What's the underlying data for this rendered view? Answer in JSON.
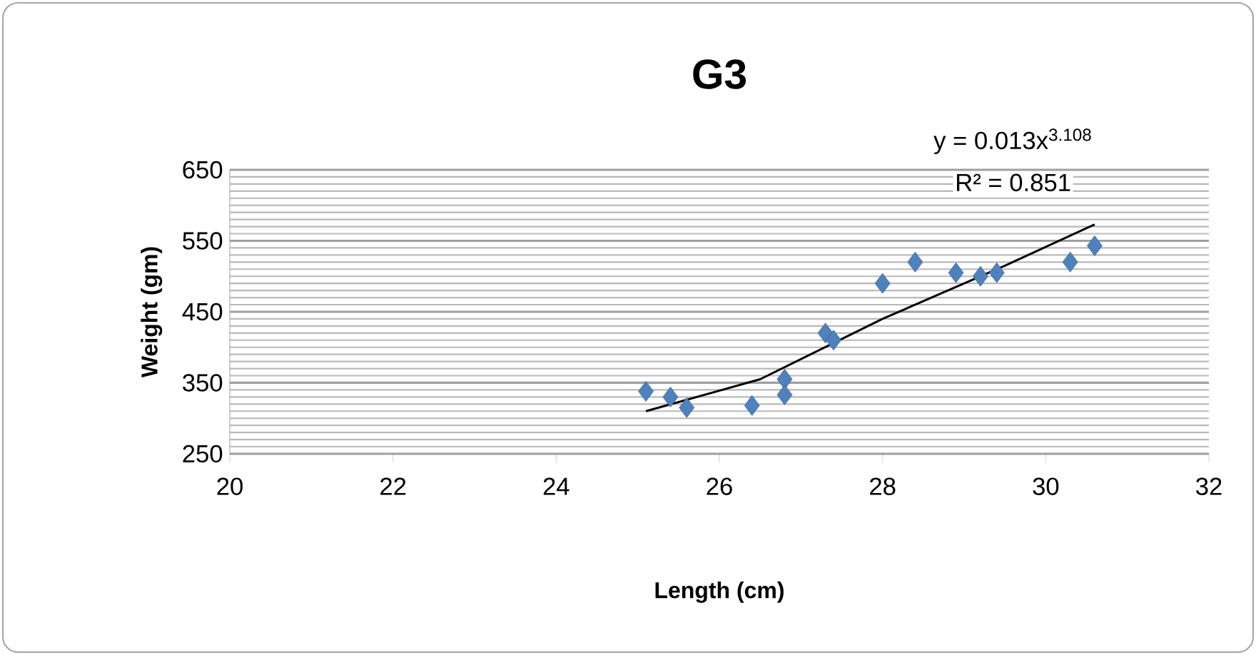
{
  "chart_data": {
    "type": "scatter",
    "title": "G3",
    "xlabel": "Length (cm)",
    "ylabel": "Weight (gm)",
    "annotations": [
      "y = 0.013x$^{3.108}$",
      "R² = 0.851"
    ],
    "xlim": [
      20,
      32
    ],
    "xticks": [
      20,
      22,
      24,
      26,
      28,
      30,
      32
    ],
    "ylim": [
      250,
      650
    ],
    "yticks": [
      250,
      {
        "value": 260,
        "label": null
      },
      {
        "value": 270,
        "label": null
      },
      {
        "value": 280,
        "label": null
      },
      {
        "value": 290,
        "label": null
      },
      {
        "value": 300,
        "label": null
      },
      {
        "value": 310,
        "label": null
      },
      {
        "value": 320,
        "label": null
      },
      {
        "value": 330,
        "label": null
      },
      {
        "value": 340,
        "label": null
      },
      350,
      {
        "value": 360,
        "label": null
      },
      {
        "value": 370,
        "label": null
      },
      {
        "value": 380,
        "label": null
      },
      {
        "value": 390,
        "label": null
      },
      {
        "value": 400,
        "label": null
      },
      {
        "value": 410,
        "label": null
      },
      {
        "value": 420,
        "label": null
      },
      {
        "value": 430,
        "label": null
      },
      {
        "value": 440,
        "label": null
      },
      450,
      {
        "value": 460,
        "label": null
      },
      {
        "value": 470,
        "label": null
      },
      {
        "value": 480,
        "label": null
      },
      {
        "value": 490,
        "label": null
      },
      {
        "value": 500,
        "label": null
      },
      {
        "value": 510,
        "label": null
      },
      {
        "value": 520,
        "label": null
      },
      {
        "value": 530,
        "label": null
      },
      {
        "value": 540,
        "label": null
      },
      550,
      {
        "value": 560,
        "label": null
      },
      {
        "value": 570,
        "label": null
      },
      {
        "value": 580,
        "label": null
      },
      {
        "value": 590,
        "label": null
      },
      {
        "value": 600,
        "label": null
      },
      {
        "value": 610,
        "label": null
      },
      {
        "value": 620,
        "label": null
      },
      {
        "value": 630,
        "label": null
      },
      {
        "value": 640,
        "label": null
      },
      650
    ],
    "grid": "y",
    "series": [
      {
        "type": "scatter",
        "marker": "diamond",
        "color": "#4f81bd",
        "x": [
          25.1,
          25.4,
          25.6,
          26.4,
          26.8,
          26.8,
          27.3,
          27.4,
          28.0,
          28.4,
          28.9,
          29.2,
          29.4,
          30.3,
          30.6
        ],
        "values": [
          338,
          330,
          315,
          318,
          355,
          333,
          420,
          410,
          490,
          520,
          505,
          500,
          505,
          520,
          543
        ]
      },
      {
        "type": "line",
        "marker": "none",
        "line_style": "solid",
        "color": "#000000",
        "x": [
          25.1,
          26.5,
          28.0,
          29.5,
          30.6
        ],
        "values": [
          310,
          355,
          440,
          515,
          573
        ]
      }
    ]
  }
}
